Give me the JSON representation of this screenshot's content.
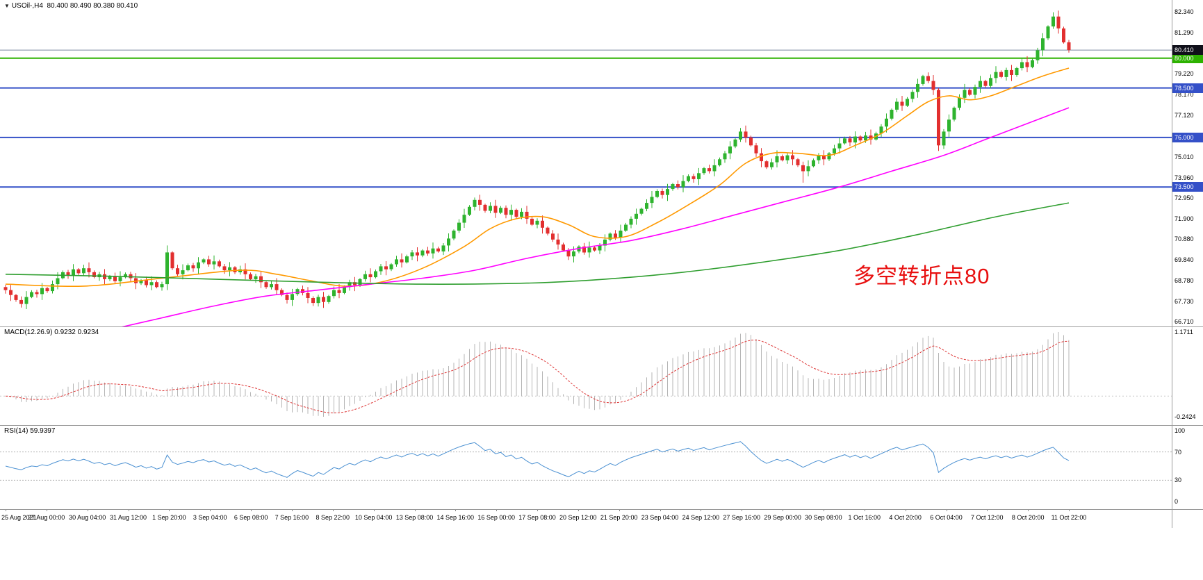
{
  "header": {
    "symbol_period": "USOil-,H4",
    "ohlc_text": "80.400 80.490 80.380 80.410",
    "collapse_icon": "triangle-down"
  },
  "colors": {
    "up": "#2eb32e",
    "down": "#e22f2f",
    "ma_fast": "#ff9900",
    "ma_mid": "#ff00ff",
    "ma_slow": "#2f9e2f",
    "level_green": "#2db200",
    "level_blue": "#3450c8",
    "current_line": "#7a8aa0",
    "current_badge_bg": "#10101a",
    "macd_hist": "#b5b5b5",
    "macd_signal": "#dd3333",
    "macd_zero": "#c8c8c8",
    "rsi_line": "#4a90d2",
    "rsi_level_dash": "#b0b0b0",
    "annotation": "#e81010",
    "axis_text": "#000000"
  },
  "chart_data": {
    "type": "candlestick",
    "symbol": "USOil-",
    "timeframe": "H4",
    "ohlc_current": {
      "open": 80.4,
      "high": 80.49,
      "low": 80.38,
      "close": 80.41
    },
    "price_axis_labels": [
      "82.340",
      "81.290",
      "79.220",
      "78.170",
      "77.120",
      "75.010",
      "73.960",
      "72.950",
      "71.900",
      "70.880",
      "69.840",
      "68.780",
      "67.730",
      "66.710"
    ],
    "time_axis_labels": [
      "25 Aug 2021",
      "27 Aug 00:00",
      "30 Aug 04:00",
      "31 Aug 12:00",
      "1 Sep 20:00",
      "3 Sep 04:00",
      "6 Sep 08:00",
      "7 Sep 16:00",
      "8 Sep 22:00",
      "10 Sep 04:00",
      "13 Sep 08:00",
      "14 Sep 16:00",
      "16 Sep 00:00",
      "17 Sep 08:00",
      "20 Sep 12:00",
      "21 Sep 20:00",
      "23 Sep 04:00",
      "24 Sep 12:00",
      "27 Sep 16:00",
      "29 Sep 00:00",
      "30 Sep 08:00",
      "1 Oct 16:00",
      "4 Oct 20:00",
      "6 Oct 04:00",
      "7 Oct 12:00",
      "8 Oct 20:00",
      "11 Oct 22:00"
    ],
    "candles": {
      "first_open": 68.45,
      "closes": [
        68.3,
        68.05,
        67.8,
        67.6,
        67.95,
        68.2,
        68.1,
        68.4,
        68.25,
        68.6,
        68.9,
        69.2,
        69.05,
        69.35,
        69.15,
        69.4,
        69.2,
        68.95,
        69.1,
        68.85,
        69.0,
        68.75,
        68.95,
        69.1,
        68.9,
        68.65,
        68.8,
        68.55,
        68.7,
        68.45,
        68.6,
        70.2,
        69.4,
        69.1,
        69.3,
        69.55,
        69.4,
        69.7,
        69.85,
        69.6,
        69.75,
        69.5,
        69.3,
        69.45,
        69.2,
        69.35,
        69.1,
        68.85,
        69.0,
        68.7,
        68.45,
        68.6,
        68.3,
        68.05,
        67.8,
        68.1,
        68.35,
        68.15,
        67.9,
        67.65,
        67.95,
        67.7,
        68.0,
        68.3,
        68.15,
        68.45,
        68.7,
        68.55,
        68.85,
        69.1,
        68.95,
        69.25,
        69.5,
        69.35,
        69.6,
        69.85,
        69.7,
        70.0,
        70.2,
        70.05,
        70.3,
        70.15,
        70.4,
        70.25,
        70.55,
        70.9,
        71.3,
        71.7,
        72.1,
        72.5,
        72.85,
        72.6,
        72.3,
        72.55,
        72.2,
        72.45,
        72.1,
        72.35,
        72.0,
        72.25,
        71.9,
        71.6,
        71.8,
        71.45,
        71.15,
        70.85,
        70.6,
        70.3,
        70.0,
        70.25,
        70.5,
        70.2,
        70.45,
        70.3,
        70.55,
        70.85,
        71.15,
        70.95,
        71.3,
        71.6,
        71.9,
        72.15,
        72.4,
        72.7,
        73.0,
        73.3,
        73.1,
        73.4,
        73.65,
        73.5,
        73.8,
        74.05,
        73.9,
        74.2,
        74.45,
        74.3,
        74.6,
        74.9,
        75.2,
        75.55,
        75.9,
        76.3,
        76.0,
        75.6,
        75.2,
        74.8,
        74.5,
        74.75,
        75.05,
        74.85,
        75.1,
        74.9,
        74.6,
        74.3,
        74.55,
        74.85,
        75.1,
        74.9,
        75.2,
        75.45,
        75.7,
        75.95,
        75.75,
        76.05,
        75.85,
        76.1,
        75.9,
        76.2,
        76.55,
        76.95,
        77.4,
        77.8,
        77.6,
        77.95,
        78.3,
        78.7,
        79.1,
        78.85,
        78.4,
        75.6,
        76.3,
        76.9,
        77.5,
        78.0,
        78.4,
        78.15,
        78.55,
        78.85,
        78.6,
        79.0,
        79.3,
        79.05,
        79.4,
        79.15,
        79.5,
        79.8,
        79.55,
        79.9,
        80.4,
        81.0,
        81.6,
        82.1,
        81.5,
        80.8,
        80.41
      ],
      "overrides": {
        "3": {
          "low": 67.42
        },
        "31": {
          "high": 70.55
        },
        "59": {
          "low": 67.5
        },
        "153": {
          "low": 73.72
        },
        "179": {
          "low": 75.32
        },
        "201": {
          "high": 82.32
        },
        "204": {
          "low": 80.28
        }
      }
    },
    "moving_averages": [
      {
        "name": "ma-fast-orange",
        "color": "#ff9900",
        "points": [
          [
            0,
            68.6
          ],
          [
            15,
            68.5
          ],
          [
            30,
            68.9
          ],
          [
            45,
            69.3
          ],
          [
            52,
            69.1
          ],
          [
            58,
            68.8
          ],
          [
            65,
            68.5
          ],
          [
            72,
            68.7
          ],
          [
            80,
            69.4
          ],
          [
            88,
            70.5
          ],
          [
            93,
            71.4
          ],
          [
            98,
            71.9
          ],
          [
            103,
            72.0
          ],
          [
            108,
            71.6
          ],
          [
            113,
            71.0
          ],
          [
            119,
            71.0
          ],
          [
            125,
            71.7
          ],
          [
            131,
            72.6
          ],
          [
            137,
            73.6
          ],
          [
            142,
            74.7
          ],
          [
            147,
            75.2
          ],
          [
            152,
            75.2
          ],
          [
            158,
            75.1
          ],
          [
            163,
            75.6
          ],
          [
            168,
            76.2
          ],
          [
            173,
            77.1
          ],
          [
            177,
            77.8
          ],
          [
            181,
            78.1
          ],
          [
            185,
            77.9
          ],
          [
            189,
            78.1
          ],
          [
            194,
            78.6
          ],
          [
            199,
            79.1
          ],
          [
            204,
            79.5
          ]
        ]
      },
      {
        "name": "ma-mid-magenta",
        "color": "#ff00ff",
        "points": [
          [
            20,
            66.3
          ],
          [
            30,
            66.9
          ],
          [
            40,
            67.5
          ],
          [
            50,
            68.0
          ],
          [
            60,
            68.3
          ],
          [
            70,
            68.6
          ],
          [
            80,
            68.9
          ],
          [
            90,
            69.3
          ],
          [
            100,
            69.9
          ],
          [
            110,
            70.4
          ],
          [
            120,
            70.8
          ],
          [
            130,
            71.4
          ],
          [
            140,
            72.1
          ],
          [
            150,
            72.8
          ],
          [
            160,
            73.5
          ],
          [
            170,
            74.3
          ],
          [
            180,
            75.1
          ],
          [
            188,
            75.9
          ],
          [
            195,
            76.6
          ],
          [
            200,
            77.1
          ],
          [
            204,
            77.5
          ]
        ]
      },
      {
        "name": "ma-slow-green",
        "color": "#2f9e2f",
        "points": [
          [
            0,
            69.1
          ],
          [
            20,
            69.0
          ],
          [
            40,
            68.85
          ],
          [
            60,
            68.7
          ],
          [
            80,
            68.6
          ],
          [
            100,
            68.65
          ],
          [
            115,
            68.85
          ],
          [
            130,
            69.2
          ],
          [
            145,
            69.7
          ],
          [
            160,
            70.3
          ],
          [
            175,
            71.1
          ],
          [
            190,
            72.0
          ],
          [
            204,
            72.7
          ]
        ]
      }
    ],
    "horizontal_levels": [
      {
        "value": 80.0,
        "label": "80.000",
        "color": "#2db200"
      },
      {
        "value": 78.5,
        "label": "78.500",
        "color": "#3450c8"
      },
      {
        "value": 76.0,
        "label": "76.000",
        "color": "#3450c8"
      },
      {
        "value": 73.5,
        "label": "73.500",
        "color": "#3450c8"
      }
    ],
    "current_price": {
      "value": 80.41,
      "label": "80.410"
    },
    "annotation": {
      "text": "多空转折点80",
      "color": "#e81010"
    },
    "indicators": {
      "macd": {
        "label": "MACD(12.26.9) 0.9232 0.9234",
        "params": [
          12,
          26,
          9
        ],
        "values": [
          0.9232,
          0.9234
        ],
        "axis_labels": [
          "1.1711",
          "-0.2424"
        ]
      },
      "rsi": {
        "label": "RSI(14) 59.9397",
        "period": 14,
        "value": 59.9397,
        "axis_labels": [
          "100",
          "70",
          "30",
          "0"
        ],
        "levels": [
          70,
          30
        ]
      }
    }
  }
}
